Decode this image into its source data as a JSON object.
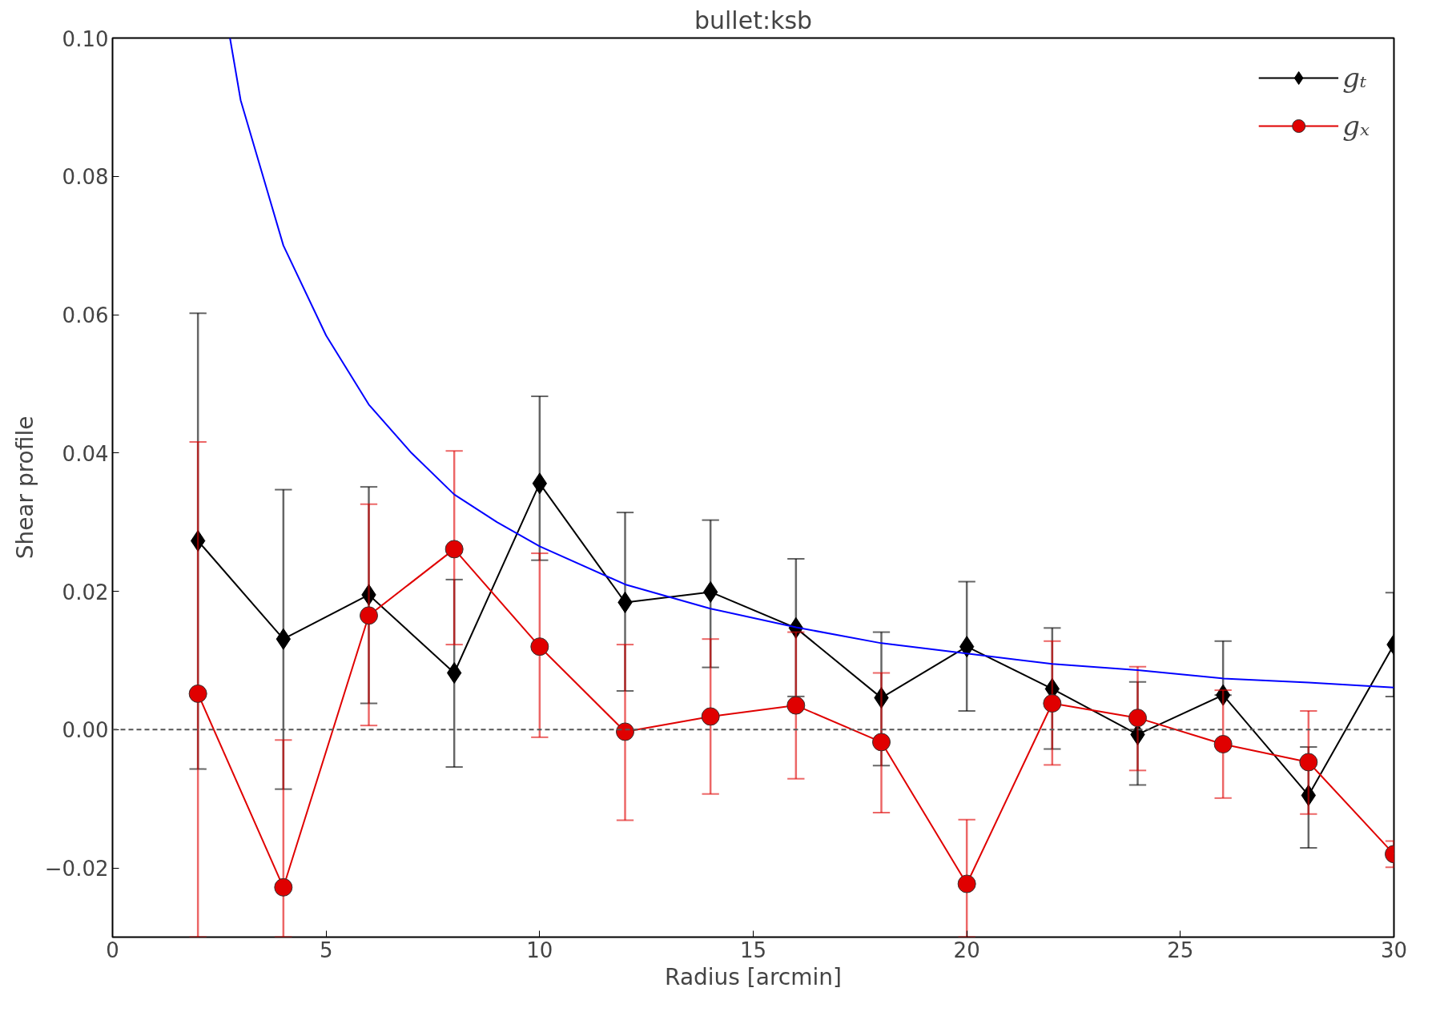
{
  "chart_data": {
    "type": "line",
    "title": "bullet:ksb",
    "xlabel": "Radius [arcmin]",
    "ylabel": "Shear profile",
    "xlim": [
      0,
      30
    ],
    "xticks": [
      0,
      5,
      10,
      15,
      20,
      25,
      30
    ],
    "ylim": [
      -0.03,
      0.1
    ],
    "yticks": [
      {
        "value": -0.02,
        "label": "−0.02"
      },
      {
        "value": 0.0,
        "label": "0.00"
      },
      {
        "value": 0.02,
        "label": "0.02"
      },
      {
        "value": 0.04,
        "label": "0.04"
      },
      {
        "value": 0.06,
        "label": "0.06"
      },
      {
        "value": 0.08,
        "label": "0.08"
      },
      {
        "value": 0.1,
        "label": "0.10"
      }
    ],
    "grid": false,
    "legend": "top right",
    "ref_lines": [
      {
        "axis": "y",
        "value": 0,
        "color": "#555555",
        "line_style": "dashed"
      }
    ],
    "series": [
      {
        "name": "gₜ",
        "color": "#000000",
        "marker": "diamond",
        "x": [
          2,
          4,
          6,
          8,
          10,
          12,
          14,
          16,
          18,
          20,
          22,
          24,
          26,
          28,
          30
        ],
        "values": [
          0.0273,
          0.0131,
          0.0195,
          0.0082,
          0.0356,
          0.0184,
          0.0199,
          0.0147,
          0.0046,
          0.012,
          0.0059,
          -0.0007,
          0.005,
          -0.0095,
          0.0123
        ],
        "errors": [
          [
            -0.0057,
            0.0602
          ],
          [
            -0.0086,
            0.0347
          ],
          [
            0.0038,
            0.0351
          ],
          [
            -0.0054,
            0.0217
          ],
          [
            0.0245,
            0.0482
          ],
          [
            0.0056,
            0.0314
          ],
          [
            0.009,
            0.0303
          ],
          [
            0.0048,
            0.0247
          ],
          [
            -0.0052,
            0.0141
          ],
          [
            0.0027,
            0.0214
          ],
          [
            -0.0028,
            0.0147
          ],
          [
            -0.008,
            0.0069
          ],
          [
            0.005,
            0.0128
          ],
          [
            -0.0171,
            -0.0025
          ],
          [
            0.0048,
            0.0198
          ]
        ]
      },
      {
        "name": "gₓ",
        "color": "#e00000",
        "marker": "circle",
        "x": [
          2,
          4,
          6,
          8,
          10,
          12,
          14,
          16,
          18,
          20,
          22,
          24,
          26,
          28,
          30
        ],
        "values": [
          0.0052,
          -0.0228,
          0.0165,
          0.0261,
          0.012,
          -0.0003,
          0.0019,
          0.0035,
          -0.0018,
          -0.0223,
          0.0038,
          0.0017,
          -0.0021,
          -0.0047,
          -0.018
        ],
        "errors": [
          [
            -0.03,
            0.0416
          ],
          [
            -0.03,
            -0.0015
          ],
          [
            0.0006,
            0.0326
          ],
          [
            0.0123,
            0.0403
          ],
          [
            -0.0011,
            0.0255
          ],
          [
            -0.0131,
            0.0123
          ],
          [
            -0.0093,
            0.0131
          ],
          [
            -0.0071,
            0.0141
          ],
          [
            -0.012,
            0.0082
          ],
          [
            -0.03,
            -0.013
          ],
          [
            -0.0051,
            0.0128
          ],
          [
            -0.0059,
            0.0091
          ],
          [
            -0.0099,
            0.0057
          ],
          [
            -0.0122,
            0.0027
          ],
          [
            -0.0199,
            -0.0161
          ]
        ]
      },
      {
        "color": "#0000ff",
        "marker": "none",
        "x": [
          2.75,
          3,
          4,
          5,
          6,
          7,
          8,
          9,
          10,
          12,
          14,
          16,
          18,
          20,
          22,
          24,
          26,
          28,
          30
        ],
        "values": [
          0.1,
          0.091,
          0.07,
          0.057,
          0.047,
          0.04,
          0.034,
          0.03,
          0.0265,
          0.021,
          0.0175,
          0.0148,
          0.0125,
          0.011,
          0.0095,
          0.0086,
          0.0074,
          0.0068,
          0.0061
        ]
      }
    ]
  }
}
